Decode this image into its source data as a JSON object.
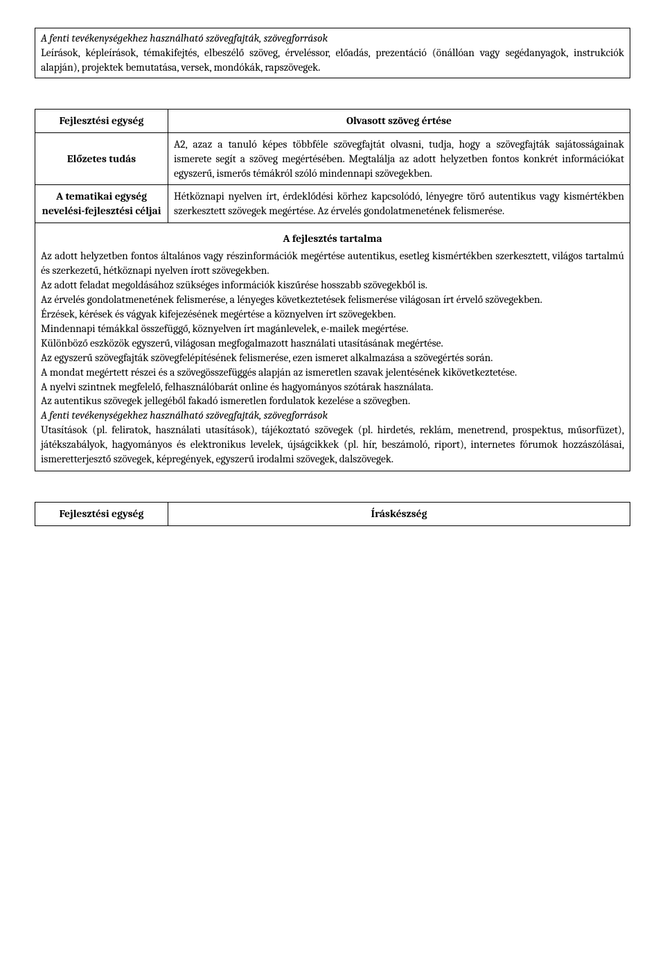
{
  "topbox": {
    "heading": "A fenti tevékenységekhez használható szövegfajták, szövegforrások",
    "body": "Leírások, képleírások, témakifejtés, elbeszélő szöveg, érveléssor, előadás, prezentáció (önállóan vagy segédanyagok, instrukciók alapján), projektek bemutatása, versek, mondókák, rapszövegek."
  },
  "table1": {
    "r1label": "Fejlesztési egység",
    "r1title": "Olvasott szöveg értése",
    "r2label": "Előzetes tudás",
    "r2body": "A2, azaz a tanuló képes többféle szövegfajtát olvasni, tudja, hogy a szövegfajták sajátosságainak ismerete segít a szöveg megértésében. Megtalálja az adott helyzetben fontos konkrét információkat egyszerű, ismerős témákról szóló mindennapi szövegekben.",
    "r3label": "A tematikai egység nevelési-fejlesztési céljai",
    "r3body": "Hétköznapi nyelven írt, érdeklődési körhez kapcsolódó, lényegre törő autentikus vagy kismértékben szerkesztett szövegek megértése. Az érvelés gondolatmenetének felismerése.",
    "devtitle": "A fejlesztés tartalma",
    "devbody1": "Az adott helyzetben fontos általános vagy részinformációk megértése autentikus, esetleg kismértékben szerkesztett, világos tartalmú és szerkezetű, hétköznapi nyelven írott szövegekben.",
    "devbody2": "Az adott feladat megoldásához szükséges információk kiszűrése hosszabb szövegekből is.",
    "devbody3": "Az érvelés gondolatmenetének felismerése, a lényeges következtetések felismerése világosan írt érvelő szövegekben.",
    "devbody4": "Érzések, kérések és vágyak kifejezésének megértése a köznyelven írt szövegekben.",
    "devbody5": "Mindennapi témákkal összefüggő, köznyelven írt magánlevelek, e-mailek megértése.",
    "devbody6": "Különböző eszközök egyszerű, világosan megfogalmazott használati utasításának megértése.",
    "devbody7": "Az egyszerű szövegfajták szövegfelépítésének felismerése, ezen ismeret alkalmazása a szövegértés során.",
    "devbody8": "A mondat megértett részei és a szövegösszefüggés alapján az ismeretlen szavak jelentésének kikövetkeztetése.",
    "devbody9": "A nyelvi szintnek megfelelő, felhasználóbarát online és hagyományos szótárak használata.",
    "devbody10": "Az autentikus szövegek jellegéből fakadó ismeretlen fordulatok kezelése a szövegben.",
    "devhead2": "A fenti tevékenységekhez használható szövegfajták, szövegforrások",
    "devbody11": "Utasítások (pl. feliratok, használati utasítások), tájékoztató szövegek (pl. hirdetés, reklám, menetrend, prospektus, műsorfüzet), játékszabályok, hagyományos és elektronikus levelek, újságcikkek (pl. hír, beszámoló, riport), internetes fórumok hozzászólásai, ismeretterjesztő szövegek, képregények, egyszerű irodalmi szövegek, dalszövegek."
  },
  "table2": {
    "r1label": "Fejlesztési egység",
    "r1title": "Íráskészség"
  }
}
